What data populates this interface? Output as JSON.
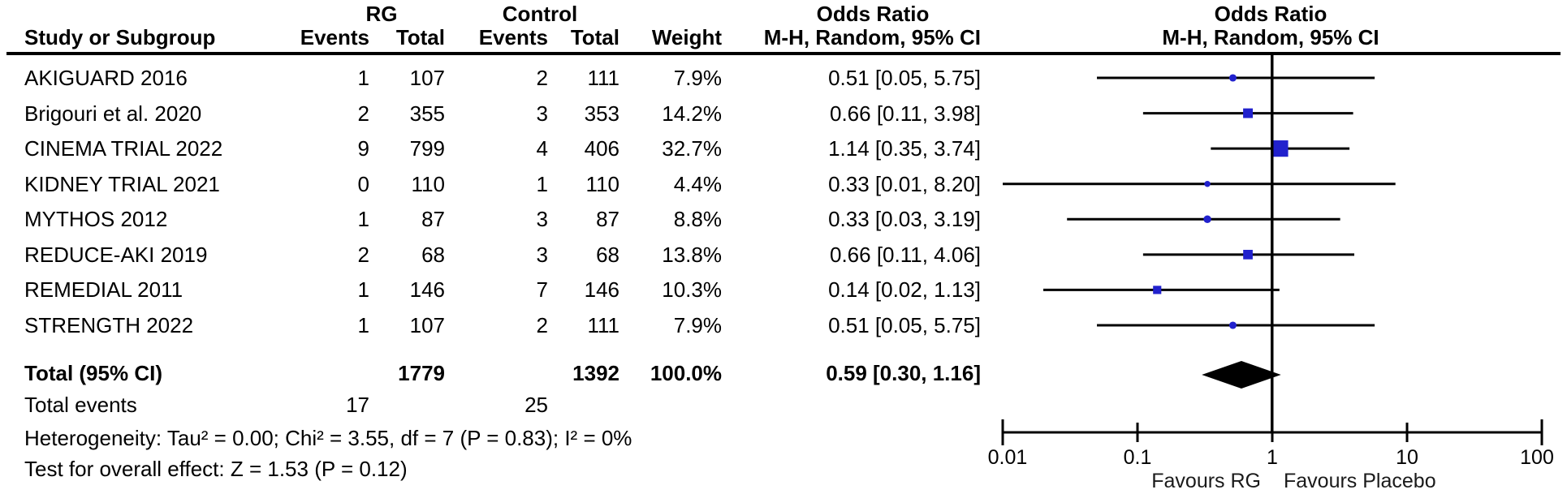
{
  "header": {
    "col_group_rg": "RG",
    "col_group_control": "Control",
    "col_group_or_text": "Odds Ratio",
    "col_group_or_plot": "Odds Ratio",
    "study": "Study or Subgroup",
    "rg_events": "Events",
    "rg_total": "Total",
    "control_events": "Events",
    "control_total": "Total",
    "weight": "Weight",
    "mh_text": "M-H, Random, 95% CI",
    "mh_plot": "M-H, Random, 95% CI"
  },
  "footer": {
    "total_events_label": "Total events",
    "heterogeneity": "Heterogeneity: Tau² = 0.00; Chi² = 3.55, df = 7 (P = 0.83); I² = 0%",
    "overall_effect": "Test for overall effect: Z = 1.53 (P = 0.12)"
  },
  "chart_data": {
    "type": "scatter",
    "subtype": "forest-plot-meta-analysis",
    "effect_measure": "Odds Ratio, M-H, Random, 95% CI",
    "studies": [
      {
        "name": "AKIGUARD 2016",
        "rg_events": "1",
        "rg_total": "107",
        "control_events": "2",
        "control_total": "111",
        "weight": "7.9%",
        "weight_value": 7.9,
        "or_label": "0.51 [0.05, 5.75]",
        "or": 0.51,
        "ci_low": 0.05,
        "ci_high": 5.75
      },
      {
        "name": "Brigouri et al. 2020",
        "rg_events": "2",
        "rg_total": "355",
        "control_events": "3",
        "control_total": "353",
        "weight": "14.2%",
        "weight_value": 14.2,
        "or_label": "0.66 [0.11, 3.98]",
        "or": 0.66,
        "ci_low": 0.11,
        "ci_high": 3.98
      },
      {
        "name": "CINEMA TRIAL 2022",
        "rg_events": "9",
        "rg_total": "799",
        "control_events": "4",
        "control_total": "406",
        "weight": "32.7%",
        "weight_value": 32.7,
        "or_label": "1.14 [0.35, 3.74]",
        "or": 1.14,
        "ci_low": 0.35,
        "ci_high": 3.74
      },
      {
        "name": "KIDNEY TRIAL 2021",
        "rg_events": "0",
        "rg_total": "110",
        "control_events": "1",
        "control_total": "110",
        "weight": "4.4%",
        "weight_value": 4.4,
        "or_label": "0.33 [0.01, 8.20]",
        "or": 0.33,
        "ci_low": 0.01,
        "ci_high": 8.2
      },
      {
        "name": "MYTHOS 2012",
        "rg_events": "1",
        "rg_total": "87",
        "control_events": "3",
        "control_total": "87",
        "weight": "8.8%",
        "weight_value": 8.8,
        "or_label": "0.33 [0.03, 3.19]",
        "or": 0.33,
        "ci_low": 0.03,
        "ci_high": 3.19
      },
      {
        "name": "REDUCE-AKI 2019",
        "rg_events": "2",
        "rg_total": "68",
        "control_events": "3",
        "control_total": "68",
        "weight": "13.8%",
        "weight_value": 13.8,
        "or_label": "0.66 [0.11, 4.06]",
        "or": 0.66,
        "ci_low": 0.11,
        "ci_high": 4.06
      },
      {
        "name": "REMEDIAL 2011",
        "rg_events": "1",
        "rg_total": "146",
        "control_events": "7",
        "control_total": "146",
        "weight": "10.3%",
        "weight_value": 10.3,
        "or_label": "0.14 [0.02, 1.13]",
        "or": 0.14,
        "ci_low": 0.02,
        "ci_high": 1.13
      },
      {
        "name": "STRENGTH 2022",
        "rg_events": "1",
        "rg_total": "107",
        "control_events": "2",
        "control_total": "111",
        "weight": "7.9%",
        "weight_value": 7.9,
        "or_label": "0.51 [0.05, 5.75]",
        "or": 0.51,
        "ci_low": 0.05,
        "ci_high": 5.75
      }
    ],
    "total": {
      "label": "Total (95% CI)",
      "rg_total": "1779",
      "control_total": "1392",
      "weight": "100.0%",
      "or_label": "0.59 [0.30, 1.16]",
      "or": 0.59,
      "ci_low": 0.3,
      "ci_high": 1.16
    },
    "total_events": {
      "rg": "17",
      "control": "25"
    },
    "axis": {
      "scale": "log",
      "min": 0.01,
      "max": 100,
      "ticks": [
        0.01,
        0.1,
        1,
        10,
        100
      ],
      "tick_labels": [
        "0.01",
        "0.1",
        "1",
        "10",
        "100"
      ],
      "favours_left": "Favours RG",
      "favours_right": "Favours Placebo"
    },
    "colors": {
      "marker": "#2121cd",
      "ci_line": "#000000",
      "diamond": "#000000",
      "axis": "#000000",
      "text": "#000000"
    }
  }
}
